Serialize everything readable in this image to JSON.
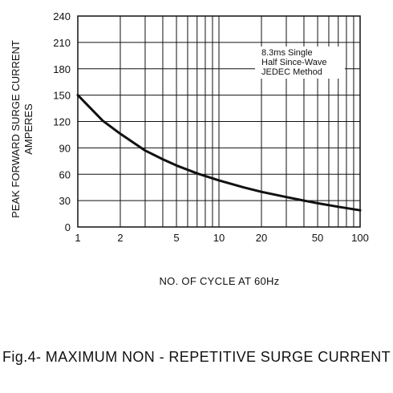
{
  "chart_data": {
    "type": "line",
    "title": "Fig.4- MAXIMUM NON - REPETITIVE SURGE CURRENT",
    "xlabel": "NO. OF CYCLE AT 60Hz",
    "ylabel_lines": [
      "PEAK FORWARD SURGE CURRENT",
      "AMPERES"
    ],
    "x_scale": "log",
    "xlim": [
      1,
      100
    ],
    "ylim": [
      0,
      240
    ],
    "x_ticks": [
      1,
      2,
      5,
      10,
      20,
      50,
      100
    ],
    "y_ticks": [
      0,
      30,
      60,
      90,
      120,
      150,
      180,
      210,
      240
    ],
    "annotation": [
      "8.3ms Single",
      "Half Since-Wave",
      "JEDEC Method"
    ],
    "grid": true,
    "series": [
      {
        "x": [
          1,
          1.5,
          2,
          3,
          4,
          5,
          7,
          10,
          15,
          20,
          30,
          40,
          50,
          70,
          100
        ],
        "y": [
          150,
          121,
          106,
          87,
          77,
          70,
          61,
          53,
          45,
          40,
          34,
          30,
          27,
          23,
          19
        ]
      }
    ]
  }
}
